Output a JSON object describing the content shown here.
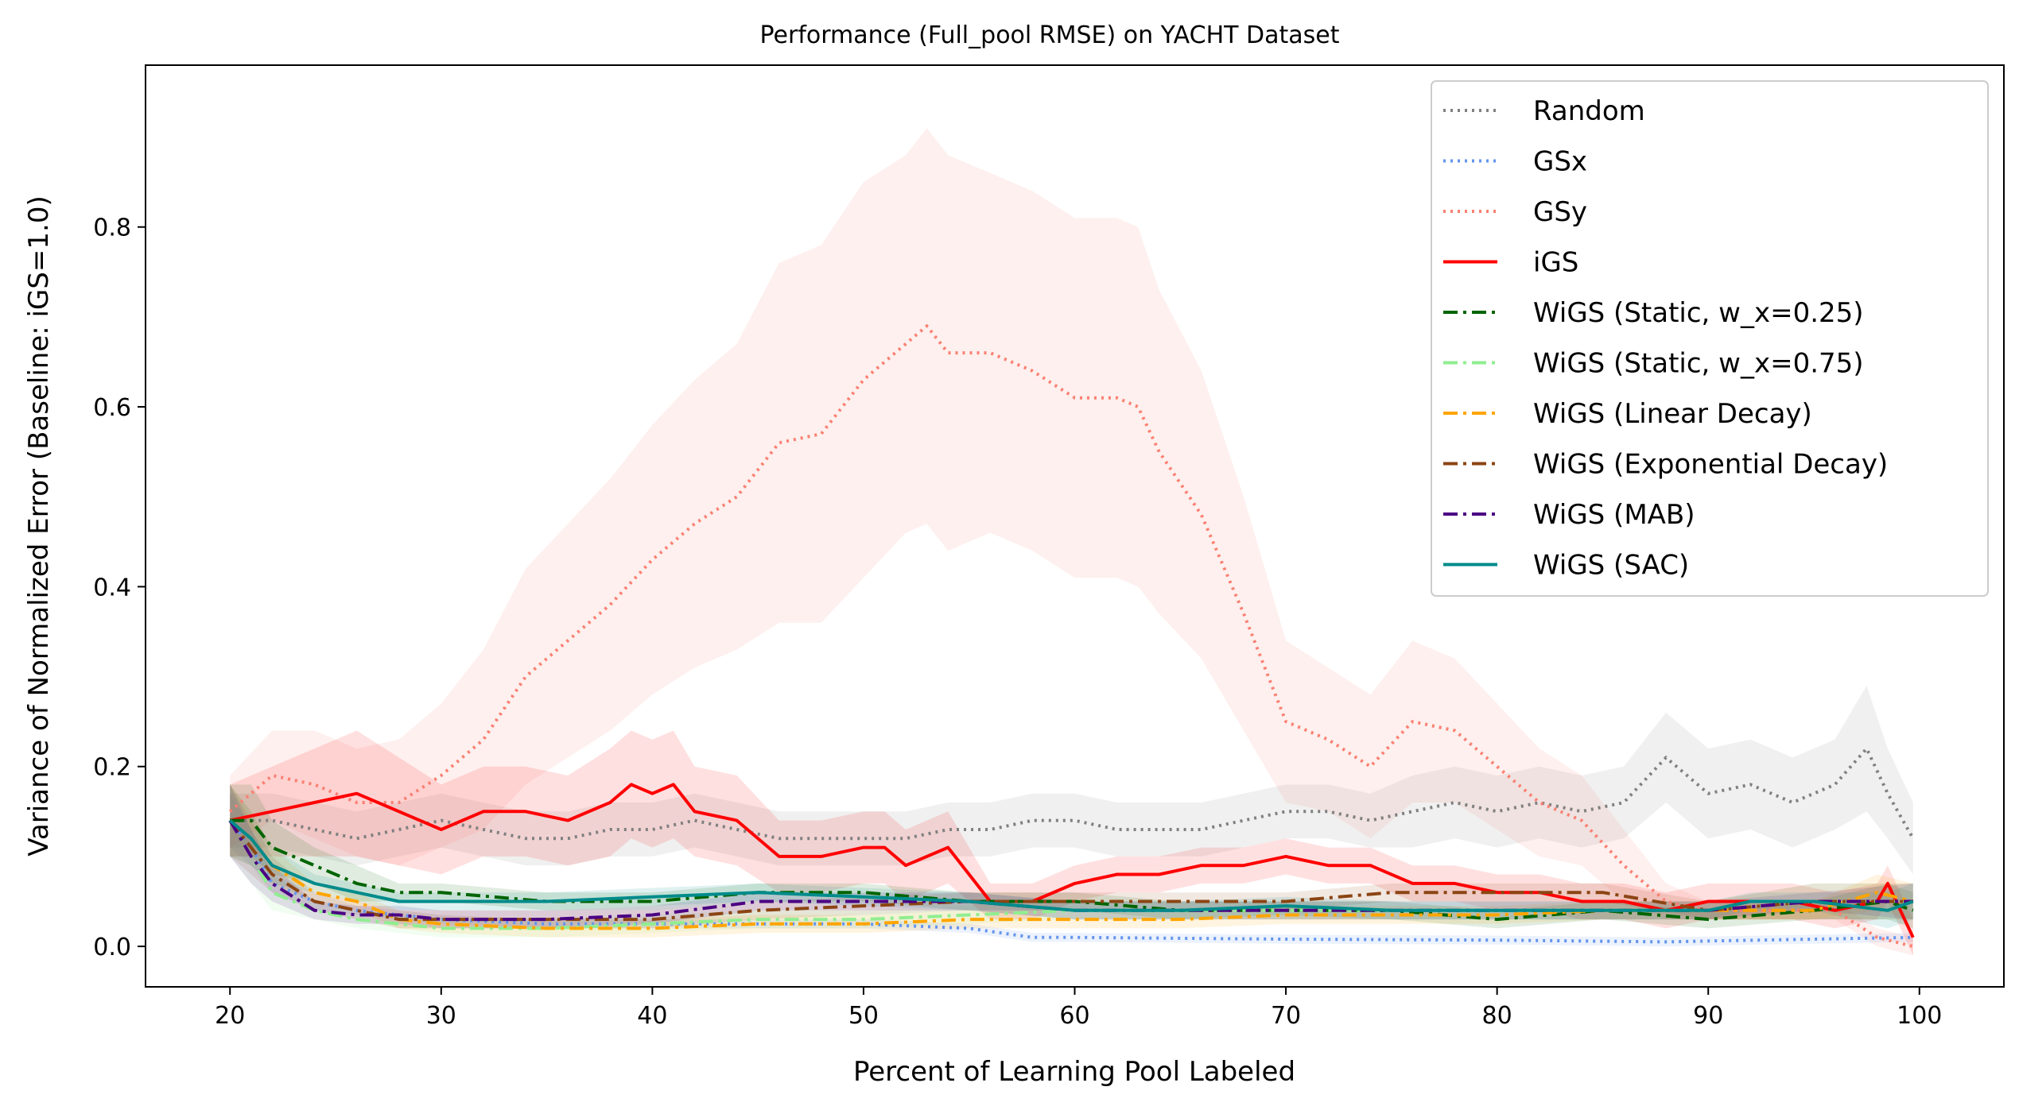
{
  "chart_data": {
    "type": "line",
    "title": "Performance (Full_pool RMSE) on YACHT Dataset",
    "xlabel": "Percent of Learning Pool Labeled",
    "ylabel": "Variance of Normalized Error (Baseline: iGS=1.0)",
    "xlim": [
      16,
      104
    ],
    "ylim": [
      -0.045,
      0.98
    ],
    "xticks": [
      20,
      30,
      40,
      50,
      60,
      70,
      80,
      90,
      100
    ],
    "yticks": [
      0.0,
      0.2,
      0.4,
      0.6,
      0.8
    ],
    "xtick_labels": [
      "20",
      "30",
      "40",
      "50",
      "60",
      "70",
      "80",
      "90",
      "100"
    ],
    "ytick_labels": [
      "0.0",
      "0.2",
      "0.4",
      "0.6",
      "0.8"
    ],
    "legend_position": "top-right",
    "grid": false,
    "series": [
      {
        "name": "Random",
        "color": "#808080",
        "style": "dotted",
        "x": [
          20,
          22,
          24,
          26,
          28,
          30,
          32,
          34,
          36,
          38,
          40,
          42,
          44,
          46,
          48,
          50,
          52,
          54,
          56,
          58,
          60,
          62,
          64,
          66,
          68,
          70,
          72,
          74,
          76,
          78,
          80,
          82,
          84,
          86,
          88,
          90,
          92,
          94,
          96,
          97.5,
          98.5,
          99.7
        ],
        "y": [
          0.14,
          0.14,
          0.13,
          0.12,
          0.13,
          0.14,
          0.13,
          0.12,
          0.12,
          0.13,
          0.13,
          0.14,
          0.13,
          0.12,
          0.12,
          0.12,
          0.12,
          0.13,
          0.13,
          0.14,
          0.14,
          0.13,
          0.13,
          0.13,
          0.14,
          0.15,
          0.15,
          0.14,
          0.15,
          0.16,
          0.15,
          0.16,
          0.15,
          0.16,
          0.21,
          0.17,
          0.18,
          0.16,
          0.18,
          0.22,
          0.17,
          0.12
        ],
        "band": [
          0.03,
          0.03,
          0.03,
          0.03,
          0.03,
          0.03,
          0.03,
          0.03,
          0.03,
          0.03,
          0.03,
          0.03,
          0.03,
          0.03,
          0.03,
          0.03,
          0.03,
          0.03,
          0.03,
          0.03,
          0.03,
          0.03,
          0.03,
          0.03,
          0.03,
          0.03,
          0.03,
          0.03,
          0.04,
          0.04,
          0.04,
          0.04,
          0.04,
          0.04,
          0.05,
          0.05,
          0.05,
          0.05,
          0.05,
          0.07,
          0.05,
          0.04
        ]
      },
      {
        "name": "GSx",
        "color": "#6495ED",
        "style": "dotted",
        "x": [
          20,
          21,
          22,
          24,
          26,
          28,
          30,
          35,
          40,
          45,
          50,
          55,
          58,
          60,
          70,
          80,
          88,
          90,
          95,
          99.7
        ],
        "y": [
          0.14,
          0.11,
          0.07,
          0.05,
          0.04,
          0.035,
          0.03,
          0.025,
          0.025,
          0.025,
          0.025,
          0.02,
          0.01,
          0.01,
          0.008,
          0.007,
          0.005,
          0.006,
          0.008,
          0.01
        ],
        "band": [
          0.03,
          0.02,
          0.01,
          0.01,
          0.005,
          0.005,
          0.005,
          0.005,
          0.005,
          0.005,
          0.005,
          0.005,
          0.005,
          0.005,
          0.005,
          0.005,
          0.005,
          0.005,
          0.005,
          0.005
        ]
      },
      {
        "name": "GSy",
        "color": "#FA8072",
        "style": "dotted",
        "x": [
          20,
          22,
          24,
          26,
          28,
          30,
          32,
          34,
          36,
          38,
          40,
          42,
          44,
          46,
          48,
          50,
          52,
          53,
          54,
          56,
          58,
          60,
          62,
          63,
          64,
          66,
          68,
          70,
          72,
          74,
          76,
          78,
          80,
          82,
          84,
          86,
          88,
          90,
          92,
          94,
          96,
          98,
          99.7
        ],
        "y": [
          0.15,
          0.19,
          0.18,
          0.16,
          0.16,
          0.19,
          0.23,
          0.3,
          0.34,
          0.38,
          0.43,
          0.47,
          0.5,
          0.56,
          0.57,
          0.63,
          0.67,
          0.69,
          0.66,
          0.66,
          0.64,
          0.61,
          0.61,
          0.6,
          0.55,
          0.48,
          0.37,
          0.25,
          0.23,
          0.2,
          0.25,
          0.24,
          0.2,
          0.16,
          0.14,
          0.09,
          0.05,
          0.04,
          0.04,
          0.04,
          0.04,
          0.01,
          0.0
        ],
        "band": [
          0.04,
          0.05,
          0.06,
          0.06,
          0.07,
          0.08,
          0.1,
          0.12,
          0.13,
          0.14,
          0.15,
          0.16,
          0.17,
          0.2,
          0.21,
          0.22,
          0.21,
          0.22,
          0.22,
          0.2,
          0.2,
          0.2,
          0.2,
          0.2,
          0.18,
          0.16,
          0.13,
          0.09,
          0.08,
          0.08,
          0.09,
          0.08,
          0.07,
          0.06,
          0.05,
          0.04,
          0.02,
          0.01,
          0.01,
          0.01,
          0.01,
          0.01,
          0.01
        ]
      },
      {
        "name": "iGS",
        "color": "#FF0000",
        "style": "solid",
        "x": [
          20,
          22,
          24,
          26,
          28,
          30,
          32,
          34,
          36,
          38,
          39,
          40,
          41,
          42,
          44,
          46,
          48,
          50,
          51,
          52,
          54,
          56,
          58,
          60,
          62,
          64,
          66,
          68,
          70,
          72,
          74,
          76,
          78,
          80,
          82,
          84,
          86,
          88,
          90,
          92,
          94,
          96,
          98,
          98.5,
          99.7
        ],
        "y": [
          0.14,
          0.15,
          0.16,
          0.17,
          0.15,
          0.13,
          0.15,
          0.15,
          0.14,
          0.16,
          0.18,
          0.17,
          0.18,
          0.15,
          0.14,
          0.1,
          0.1,
          0.11,
          0.11,
          0.09,
          0.11,
          0.05,
          0.05,
          0.07,
          0.08,
          0.08,
          0.09,
          0.09,
          0.1,
          0.09,
          0.09,
          0.07,
          0.07,
          0.06,
          0.06,
          0.05,
          0.05,
          0.04,
          0.05,
          0.05,
          0.05,
          0.04,
          0.05,
          0.07,
          0.01
        ],
        "band": [
          0.04,
          0.05,
          0.06,
          0.07,
          0.06,
          0.05,
          0.05,
          0.05,
          0.05,
          0.06,
          0.06,
          0.06,
          0.06,
          0.05,
          0.05,
          0.04,
          0.04,
          0.04,
          0.04,
          0.04,
          0.04,
          0.02,
          0.02,
          0.02,
          0.02,
          0.02,
          0.02,
          0.02,
          0.02,
          0.02,
          0.02,
          0.02,
          0.02,
          0.02,
          0.02,
          0.02,
          0.02,
          0.02,
          0.02,
          0.02,
          0.02,
          0.02,
          0.02,
          0.02,
          0.02
        ]
      },
      {
        "name": "WiGS (Static, w_x=0.25)",
        "color": "#006400",
        "style": "dashdot",
        "x": [
          20,
          21,
          22,
          24,
          26,
          28,
          30,
          35,
          40,
          45,
          50,
          55,
          60,
          65,
          70,
          75,
          80,
          85,
          90,
          95,
          98.5,
          99.7
        ],
        "y": [
          0.14,
          0.14,
          0.11,
          0.09,
          0.07,
          0.06,
          0.06,
          0.05,
          0.05,
          0.06,
          0.06,
          0.05,
          0.05,
          0.04,
          0.04,
          0.04,
          0.03,
          0.04,
          0.03,
          0.04,
          0.05,
          0.04
        ],
        "band": [
          0.04,
          0.04,
          0.03,
          0.02,
          0.02,
          0.01,
          0.01,
          0.01,
          0.01,
          0.01,
          0.01,
          0.01,
          0.01,
          0.01,
          0.01,
          0.01,
          0.01,
          0.01,
          0.01,
          0.01,
          0.02,
          0.02
        ]
      },
      {
        "name": "WiGS (Static, w_x=0.75)",
        "color": "#90EE90",
        "style": "dashdot",
        "x": [
          20,
          21,
          22,
          24,
          26,
          28,
          30,
          35,
          40,
          45,
          50,
          55,
          60,
          65,
          70,
          75,
          80,
          85,
          90,
          95,
          99.7
        ],
        "y": [
          0.14,
          0.1,
          0.06,
          0.04,
          0.03,
          0.025,
          0.02,
          0.02,
          0.025,
          0.03,
          0.03,
          0.035,
          0.04,
          0.04,
          0.04,
          0.04,
          0.04,
          0.04,
          0.04,
          0.05,
          0.05
        ],
        "band": [
          0.04,
          0.03,
          0.02,
          0.01,
          0.01,
          0.01,
          0.01,
          0.01,
          0.01,
          0.01,
          0.01,
          0.01,
          0.01,
          0.01,
          0.01,
          0.01,
          0.01,
          0.01,
          0.01,
          0.02,
          0.02
        ]
      },
      {
        "name": "WiGS (Linear Decay)",
        "color": "#FFA500",
        "style": "dashdot",
        "x": [
          20,
          21,
          22,
          24,
          26,
          28,
          30,
          35,
          40,
          45,
          50,
          55,
          60,
          65,
          70,
          75,
          80,
          85,
          90,
          95,
          98,
          99.7
        ],
        "y": [
          0.14,
          0.12,
          0.09,
          0.06,
          0.05,
          0.03,
          0.025,
          0.02,
          0.02,
          0.025,
          0.025,
          0.03,
          0.03,
          0.03,
          0.035,
          0.035,
          0.035,
          0.04,
          0.04,
          0.04,
          0.06,
          0.05
        ],
        "band": [
          0.04,
          0.03,
          0.02,
          0.01,
          0.01,
          0.01,
          0.01,
          0.01,
          0.01,
          0.01,
          0.01,
          0.01,
          0.01,
          0.01,
          0.01,
          0.01,
          0.01,
          0.01,
          0.01,
          0.01,
          0.02,
          0.02
        ]
      },
      {
        "name": "WiGS (Exponential Decay)",
        "color": "#8B4513",
        "style": "dashdot",
        "x": [
          20,
          21,
          22,
          24,
          26,
          28,
          30,
          35,
          40,
          45,
          50,
          55,
          60,
          65,
          70,
          75,
          80,
          82,
          85,
          90,
          95,
          99.7
        ],
        "y": [
          0.14,
          0.11,
          0.08,
          0.05,
          0.04,
          0.03,
          0.03,
          0.03,
          0.03,
          0.04,
          0.045,
          0.05,
          0.05,
          0.05,
          0.05,
          0.06,
          0.06,
          0.06,
          0.06,
          0.04,
          0.05,
          0.05
        ],
        "band": [
          0.04,
          0.03,
          0.02,
          0.01,
          0.01,
          0.01,
          0.01,
          0.01,
          0.01,
          0.01,
          0.01,
          0.01,
          0.01,
          0.01,
          0.01,
          0.01,
          0.01,
          0.01,
          0.01,
          0.01,
          0.02,
          0.02
        ]
      },
      {
        "name": "WiGS (MAB)",
        "color": "#4B0082",
        "style": "dashdot",
        "x": [
          20,
          21,
          22,
          24,
          26,
          28,
          30,
          35,
          40,
          45,
          50,
          55,
          60,
          65,
          70,
          75,
          80,
          85,
          90,
          95,
          99.7
        ],
        "y": [
          0.14,
          0.1,
          0.07,
          0.04,
          0.035,
          0.035,
          0.03,
          0.03,
          0.035,
          0.05,
          0.05,
          0.05,
          0.04,
          0.04,
          0.04,
          0.04,
          0.04,
          0.04,
          0.04,
          0.05,
          0.05
        ],
        "band": [
          0.04,
          0.03,
          0.02,
          0.01,
          0.01,
          0.01,
          0.01,
          0.01,
          0.01,
          0.01,
          0.01,
          0.01,
          0.01,
          0.01,
          0.01,
          0.01,
          0.01,
          0.01,
          0.01,
          0.01,
          0.02
        ]
      },
      {
        "name": "WiGS (SAC)",
        "color": "#008B8B",
        "style": "solid",
        "x": [
          20,
          21,
          22,
          24,
          26,
          28,
          30,
          35,
          40,
          45,
          50,
          55,
          60,
          65,
          70,
          75,
          80,
          85,
          90,
          92,
          95,
          98.5,
          99.7
        ],
        "y": [
          0.14,
          0.12,
          0.09,
          0.07,
          0.06,
          0.05,
          0.05,
          0.05,
          0.055,
          0.06,
          0.055,
          0.05,
          0.04,
          0.04,
          0.045,
          0.04,
          0.04,
          0.04,
          0.04,
          0.05,
          0.05,
          0.04,
          0.05
        ],
        "band": [
          0.04,
          0.03,
          0.02,
          0.01,
          0.01,
          0.01,
          0.01,
          0.01,
          0.01,
          0.01,
          0.01,
          0.01,
          0.01,
          0.01,
          0.01,
          0.01,
          0.01,
          0.01,
          0.01,
          0.01,
          0.01,
          0.02,
          0.02
        ]
      }
    ]
  }
}
